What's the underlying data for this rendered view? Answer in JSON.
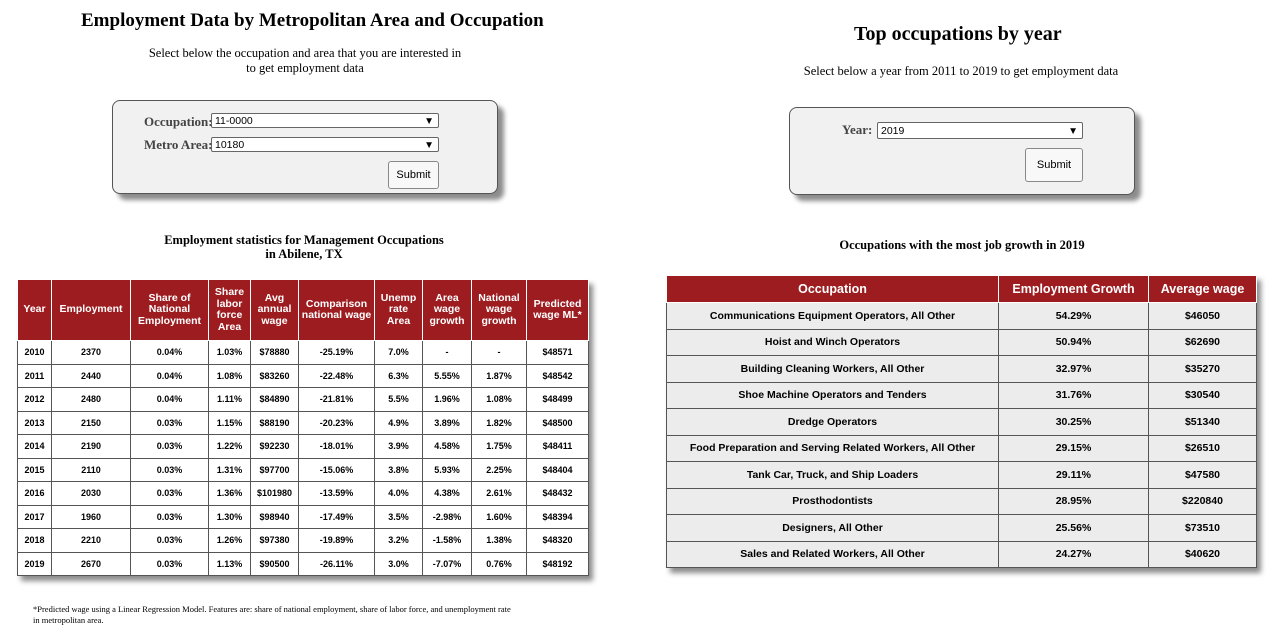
{
  "left": {
    "title": "Employment Data by Metropolitan Area and Occupation",
    "subtitle_line1": "Select below the occupation and area that you are interested in",
    "subtitle_line2": "to get employment data",
    "form": {
      "occupation_label": "Occupation:",
      "occupation_value": "11-0000",
      "metro_label": "Metro Area:",
      "metro_value": "10180",
      "submit_label": "Submit"
    },
    "table_title_line1": "Employment statistics for Management Occupations",
    "table_title_line2": "in Abilene, TX",
    "columns": [
      "Year",
      "Employment",
      "Share of National Employment",
      "Share labor force Area",
      "Avg annual wage",
      "Comparison national wage",
      "Unemp rate Area",
      "Area wage growth",
      "National wage growth",
      "Predicted wage ML*"
    ],
    "rows": [
      [
        "2010",
        "2370",
        "0.04%",
        "1.03%",
        "$78880",
        "-25.19%",
        "7.0%",
        "-",
        "-",
        "$48571"
      ],
      [
        "2011",
        "2440",
        "0.04%",
        "1.08%",
        "$83260",
        "-22.48%",
        "6.3%",
        "5.55%",
        "1.87%",
        "$48542"
      ],
      [
        "2012",
        "2480",
        "0.04%",
        "1.11%",
        "$84890",
        "-21.81%",
        "5.5%",
        "1.96%",
        "1.08%",
        "$48499"
      ],
      [
        "2013",
        "2150",
        "0.03%",
        "1.15%",
        "$88190",
        "-20.23%",
        "4.9%",
        "3.89%",
        "1.82%",
        "$48500"
      ],
      [
        "2014",
        "2190",
        "0.03%",
        "1.22%",
        "$92230",
        "-18.01%",
        "3.9%",
        "4.58%",
        "1.75%",
        "$48411"
      ],
      [
        "2015",
        "2110",
        "0.03%",
        "1.31%",
        "$97700",
        "-15.06%",
        "3.8%",
        "5.93%",
        "2.25%",
        "$48404"
      ],
      [
        "2016",
        "2030",
        "0.03%",
        "1.36%",
        "$101980",
        "-13.59%",
        "4.0%",
        "4.38%",
        "2.61%",
        "$48432"
      ],
      [
        "2017",
        "1960",
        "0.03%",
        "1.30%",
        "$98940",
        "-17.49%",
        "3.5%",
        "-2.98%",
        "1.60%",
        "$48394"
      ],
      [
        "2018",
        "2210",
        "0.03%",
        "1.26%",
        "$97380",
        "-19.89%",
        "3.2%",
        "-1.58%",
        "1.38%",
        "$48320"
      ],
      [
        "2019",
        "2670",
        "0.03%",
        "1.13%",
        "$90500",
        "-26.11%",
        "3.0%",
        "-7.07%",
        "0.76%",
        "$48192"
      ]
    ],
    "footnote_line1": "*Predicted wage using a Linear Regression Model. Features are: share of national employment, share of labor force, and unemployment rate",
    "footnote_line2": "in metropolitan area."
  },
  "right": {
    "title": "Top occupations by year",
    "subtitle": "Select below a year from 2011 to 2019 to get employment data",
    "form": {
      "year_label": "Year:",
      "year_value": "2019",
      "submit_label": "Submit"
    },
    "table_title": "Occupations with the most job growth in 2019",
    "columns": [
      "Occupation",
      "Employment Growth",
      "Average wage"
    ],
    "rows": [
      [
        "Communications Equipment Operators, All Other",
        "54.29%",
        "$46050"
      ],
      [
        "Hoist and Winch Operators",
        "50.94%",
        "$62690"
      ],
      [
        "Building Cleaning Workers, All Other",
        "32.97%",
        "$35270"
      ],
      [
        "Shoe Machine Operators and Tenders",
        "31.76%",
        "$30540"
      ],
      [
        "Dredge Operators",
        "30.25%",
        "$51340"
      ],
      [
        "Food Preparation and Serving Related Workers, All Other",
        "29.15%",
        "$26510"
      ],
      [
        "Tank Car, Truck, and Ship Loaders",
        "29.11%",
        "$47580"
      ],
      [
        "Prosthodontists",
        "28.95%",
        "$220840"
      ],
      [
        "Designers, All Other",
        "25.56%",
        "$73510"
      ],
      [
        "Sales and Related Workers, All Other",
        "24.27%",
        "$40620"
      ]
    ]
  }
}
